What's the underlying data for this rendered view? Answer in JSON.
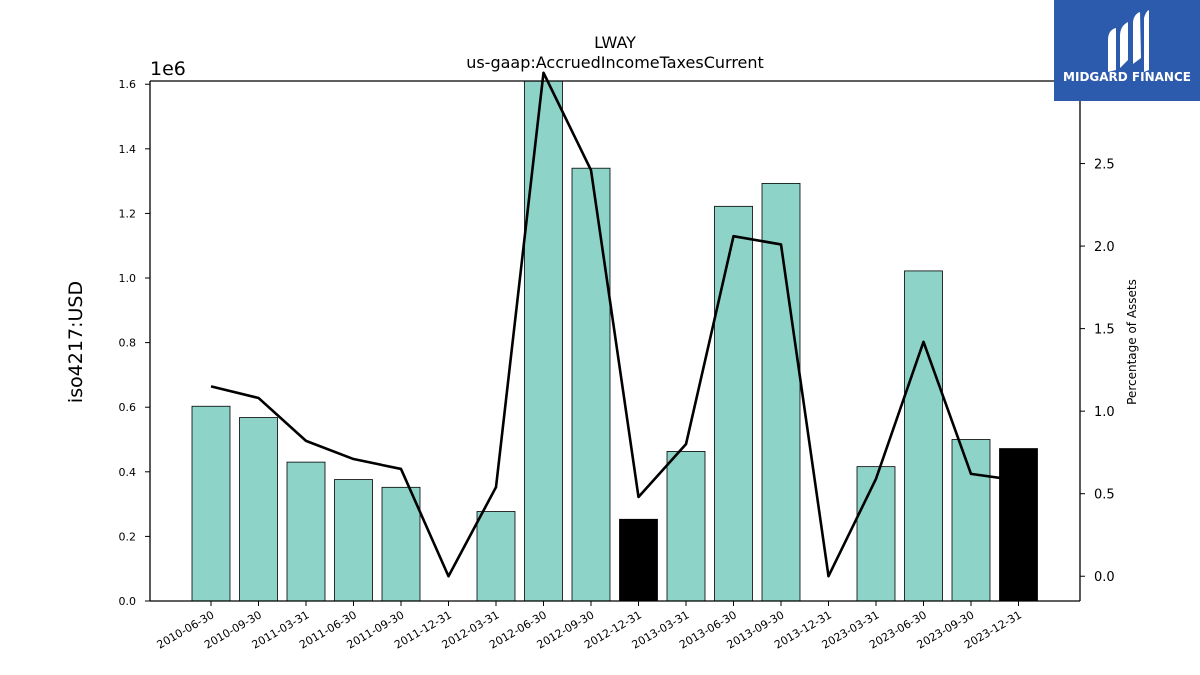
{
  "chart_data": {
    "type": "bar",
    "title": "LWAY",
    "subtitle": "us-gaap:AccruedIncomeTaxesCurrent",
    "ylabel": "iso4217:USD",
    "y_offset_label": "1e6",
    "y2label": "Percentage of Assets",
    "categories": [
      "2010-06-30",
      "2010-09-30",
      "2011-03-31",
      "2011-06-30",
      "2011-09-30",
      "2011-12-31",
      "2012-03-31",
      "2012-06-30",
      "2012-09-30",
      "2012-12-31",
      "2013-03-31",
      "2013-06-30",
      "2013-09-30",
      "2013-12-31",
      "2023-03-31",
      "2023-06-30",
      "2023-09-30",
      "2023-12-31"
    ],
    "values": [
      603000,
      568000,
      430000,
      376000,
      352000,
      0,
      277000,
      1610000,
      1340000,
      253000,
      463000,
      1222000,
      1293000,
      0,
      416000,
      1022000,
      500000,
      472000
    ],
    "bar_colors": [
      "#8dd3c7",
      "#8dd3c7",
      "#8dd3c7",
      "#8dd3c7",
      "#8dd3c7",
      "#8dd3c7",
      "#8dd3c7",
      "#8dd3c7",
      "#8dd3c7",
      "#000000",
      "#8dd3c7",
      "#8dd3c7",
      "#8dd3c7",
      "#8dd3c7",
      "#8dd3c7",
      "#8dd3c7",
      "#8dd3c7",
      "#000000"
    ],
    "line_series": {
      "values": [
        1.15,
        1.08,
        0.82,
        0.71,
        0.65,
        0.0,
        0.54,
        3.05,
        2.46,
        0.48,
        0.8,
        2.06,
        2.01,
        0.0,
        0.59,
        1.42,
        0.62,
        0.58
      ],
      "color": "#000000"
    },
    "ylim": [
      0,
      1610000
    ],
    "y_ticks": [
      0,
      200000,
      400000,
      600000,
      800000,
      1000000,
      1200000,
      1400000,
      1600000
    ],
    "y_tick_labels": [
      "0.0",
      "0.2",
      "0.4",
      "0.6",
      "0.8",
      "1.0",
      "1.2",
      "1.4",
      "1.6"
    ],
    "y2lim": [
      -0.15,
      3.0
    ],
    "y2_ticks": [
      0.0,
      0.5,
      1.0,
      1.5,
      2.0,
      2.5
    ],
    "y2_tick_labels": [
      "0.0",
      "0.5",
      "1.0",
      "1.5",
      "2.0",
      "2.5"
    ],
    "grid": false,
    "legend": "none"
  },
  "logo": {
    "text": "MIDGARD FINANCE",
    "bg_color": "#2c5aad"
  }
}
